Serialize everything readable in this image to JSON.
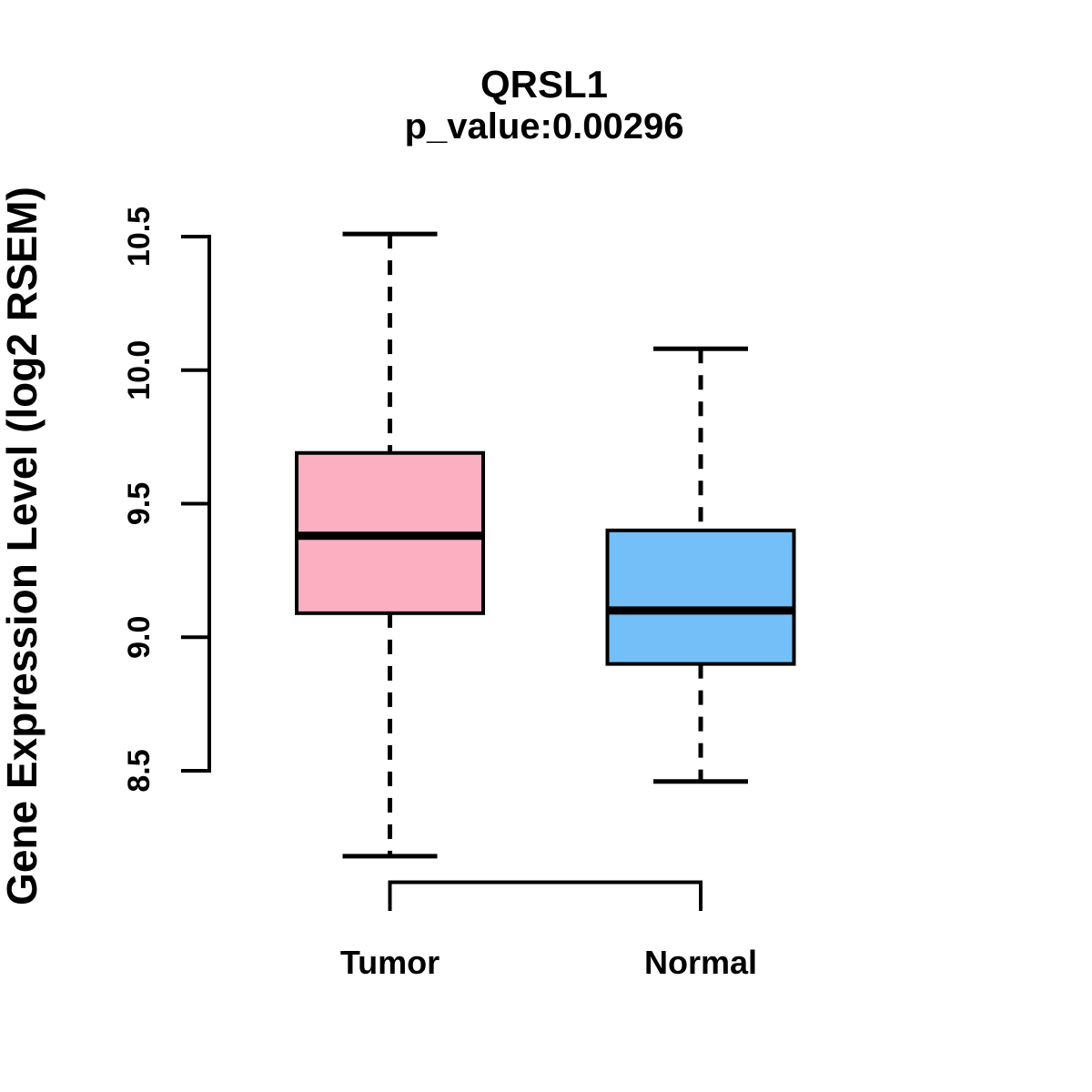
{
  "chart_data": {
    "type": "boxplot",
    "title": "QRSL1",
    "subtitle": "p_value:0.00296",
    "ylabel": "Gene Expression Level (log2 RSEM)",
    "xlabel": "",
    "ylim": [
      8.5,
      10.5
    ],
    "ytick_values": [
      8.5,
      9.0,
      9.5,
      10.0,
      10.5
    ],
    "yticks": [
      "8.5",
      "9.0",
      "9.5",
      "10.0",
      "10.5"
    ],
    "grid": false,
    "legend": "none",
    "background": "#ffffff",
    "colors": {
      "box_border": "#000000",
      "text": "#000000",
      "tumor_fill": "#FCAFC1",
      "normal_fill": "#74BFF8"
    },
    "groups": [
      {
        "label": "Tumor",
        "color": "#FCAFC1",
        "stats": {
          "whisker_low": 8.18,
          "q1": 9.09,
          "median": 9.38,
          "q3": 9.69,
          "whisker_high": 10.51
        }
      },
      {
        "label": "Normal",
        "color": "#74BFF8",
        "stats": {
          "whisker_low": 8.46,
          "q1": 8.9,
          "median": 9.1,
          "q3": 9.4,
          "whisker_high": 10.08
        }
      }
    ]
  }
}
